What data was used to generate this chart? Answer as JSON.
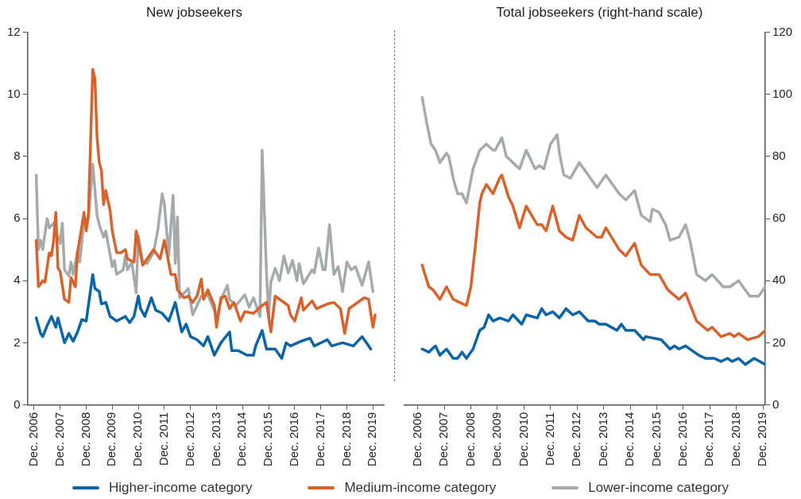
{
  "chart_data": [
    {
      "type": "line",
      "title": "New jobseekers",
      "legend": "bottom",
      "xlim": [
        "2006-09",
        "2020-05"
      ],
      "xticks": [
        {
          "value": "2006-12",
          "label": "Dec. 2006"
        },
        {
          "value": "2007-12",
          "label": "Dec. 2007"
        },
        {
          "value": "2008-12",
          "label": "Dec. 2008"
        },
        {
          "value": "2009-12",
          "label": "Dec. 2009"
        },
        {
          "value": "2010-12",
          "label": "Dec. 2010"
        },
        {
          "value": "2011-12",
          "label": "Dec. 2011"
        },
        {
          "value": "2012-12",
          "label": "Dec. 2012"
        },
        {
          "value": "2013-12",
          "label": "Dec. 2013"
        },
        {
          "value": "2014-12",
          "label": "Dec. 2014"
        },
        {
          "value": "2015-12",
          "label": "Dec. 2015"
        },
        {
          "value": "2016-12",
          "label": "Dec. 2016"
        },
        {
          "value": "2017-12",
          "label": "Dec. 2017"
        },
        {
          "value": "2018-12",
          "label": "Dec. 2018"
        },
        {
          "value": "2019-12",
          "label": "Dec. 2019"
        }
      ],
      "ylim": [
        0,
        12
      ],
      "yticks": [
        0,
        2,
        4,
        6,
        8,
        10,
        12
      ],
      "series": [
        {
          "name": "Higher-income category",
          "color": "#0a64a8",
          "x": [
            "2007-01",
            "2007-03",
            "2007-04",
            "2007-06",
            "2007-08",
            "2007-10",
            "2007-11",
            "2008-02",
            "2008-04",
            "2008-06",
            "2008-08",
            "2008-10",
            "2008-12",
            "2009-03",
            "2009-04",
            "2009-06",
            "2009-07",
            "2009-09",
            "2009-11",
            "2010-02",
            "2010-06",
            "2010-08",
            "2010-10",
            "2010-12",
            "2011-01",
            "2011-03",
            "2011-06",
            "2011-08",
            "2011-11",
            "2012-02",
            "2012-05",
            "2012-07",
            "2012-08",
            "2012-10",
            "2012-12",
            "2013-03",
            "2013-06",
            "2013-08",
            "2013-11",
            "2014-02",
            "2014-06",
            "2014-07",
            "2014-10",
            "2015-02",
            "2015-05",
            "2015-06",
            "2015-09",
            "2015-11",
            "2016-03",
            "2016-06",
            "2016-08",
            "2016-10",
            "2017-03",
            "2017-07",
            "2017-09",
            "2018-03",
            "2018-05",
            "2018-10",
            "2019-03",
            "2019-07",
            "2019-11"
          ],
          "values": [
            2.8,
            2.3,
            2.2,
            2.55,
            2.85,
            2.5,
            2.8,
            2.0,
            2.3,
            2.05,
            2.35,
            2.75,
            2.7,
            4.2,
            3.75,
            3.65,
            3.25,
            3.3,
            2.85,
            2.7,
            2.85,
            2.65,
            2.85,
            3.5,
            3.1,
            2.85,
            3.45,
            3.05,
            2.95,
            2.7,
            3.3,
            2.65,
            2.35,
            2.6,
            2.2,
            2.1,
            1.9,
            2.2,
            1.6,
            2.0,
            2.35,
            1.75,
            1.75,
            1.6,
            1.6,
            1.9,
            2.4,
            1.8,
            1.8,
            1.5,
            2.0,
            1.9,
            2.05,
            2.15,
            1.9,
            2.1,
            1.9,
            2.0,
            1.9,
            2.2,
            1.8
          ]
        },
        {
          "name": "Medium-income category",
          "color": "#d9622b",
          "x": [
            "2007-01",
            "2007-02",
            "2007-04",
            "2007-05",
            "2007-07",
            "2007-08",
            "2007-09",
            "2007-10",
            "2007-11",
            "2007-12",
            "2008-02",
            "2008-04",
            "2008-05",
            "2008-07",
            "2008-08",
            "2008-11",
            "2008-12",
            "2009-01",
            "2009-03",
            "2009-04",
            "2009-05",
            "2009-06",
            "2009-07",
            "2009-08",
            "2009-09",
            "2009-11",
            "2009-12",
            "2010-02",
            "2010-04",
            "2010-06",
            "2010-07",
            "2010-10",
            "2010-11",
            "2011-02",
            "2011-05",
            "2011-07",
            "2011-10",
            "2011-12",
            "2012-03",
            "2012-05",
            "2012-06",
            "2012-09",
            "2012-11",
            "2013-01",
            "2013-03",
            "2013-05",
            "2013-06",
            "2013-08",
            "2013-11",
            "2013-12",
            "2014-02",
            "2014-04",
            "2014-06",
            "2014-08",
            "2014-11",
            "2015-01",
            "2015-05",
            "2015-09",
            "2015-11",
            "2016-01",
            "2016-03",
            "2016-09",
            "2016-10",
            "2016-12",
            "2017-03",
            "2017-04",
            "2017-08",
            "2017-10",
            "2018-03",
            "2018-06",
            "2018-09",
            "2018-11",
            "2019-01",
            "2019-04",
            "2019-08",
            "2019-10",
            "2019-12",
            "2020-01"
          ],
          "values": [
            5.3,
            3.8,
            4.0,
            3.95,
            4.9,
            4.8,
            5.3,
            6.2,
            4.4,
            4.3,
            3.4,
            3.3,
            4.1,
            3.8,
            4.9,
            6.2,
            5.6,
            6.1,
            10.8,
            10.5,
            8.6,
            7.8,
            7.55,
            6.45,
            6.9,
            6.25,
            5.6,
            4.9,
            4.9,
            5.0,
            4.7,
            4.6,
            5.6,
            4.5,
            4.8,
            5.0,
            4.7,
            5.3,
            4.2,
            4.2,
            3.7,
            3.45,
            3.5,
            3.3,
            3.5,
            4.05,
            3.4,
            3.7,
            3.2,
            2.5,
            3.45,
            3.5,
            3.1,
            3.3,
            2.7,
            3.0,
            2.95,
            3.2,
            3.3,
            2.35,
            3.5,
            3.2,
            2.9,
            2.7,
            3.45,
            3.05,
            3.35,
            3.1,
            3.25,
            3.3,
            3.1,
            2.3,
            3.1,
            3.25,
            3.45,
            3.4,
            2.5,
            2.9
          ]
        },
        {
          "name": "Lower-income category",
          "color": "#a5aaad",
          "x": [
            "2007-01",
            "2007-02",
            "2007-03",
            "2007-04",
            "2007-06",
            "2007-07",
            "2007-09",
            "2007-11",
            "2007-12",
            "2008-01",
            "2008-02",
            "2008-04",
            "2008-05",
            "2008-06",
            "2008-08",
            "2008-09",
            "2008-11",
            "2009-01",
            "2009-03",
            "2009-05",
            "2009-06",
            "2009-08",
            "2009-09",
            "2009-12",
            "2010-01",
            "2010-02",
            "2010-05",
            "2010-06",
            "2010-07",
            "2010-09",
            "2010-11",
            "2010-12",
            "2011-02",
            "2011-04",
            "2011-07",
            "2011-09",
            "2011-11",
            "2011-12",
            "2012-02",
            "2012-04",
            "2012-05",
            "2012-06",
            "2012-07",
            "2012-09",
            "2012-11",
            "2013-01",
            "2013-03",
            "2013-05",
            "2013-08",
            "2013-12",
            "2014-03",
            "2014-05",
            "2014-06",
            "2014-09",
            "2015-01",
            "2015-03",
            "2015-05",
            "2015-08",
            "2015-09",
            "2015-11",
            "2015-12",
            "2016-01",
            "2016-03",
            "2016-05",
            "2016-07",
            "2016-09",
            "2016-11",
            "2017-01",
            "2017-02",
            "2017-04",
            "2017-08",
            "2017-09",
            "2017-11",
            "2018-01",
            "2018-02",
            "2018-04",
            "2018-06",
            "2018-08",
            "2018-10",
            "2018-12",
            "2019-02",
            "2019-04",
            "2019-07",
            "2019-10",
            "2019-12"
          ],
          "values": [
            7.4,
            5.0,
            5.3,
            5.0,
            6.0,
            5.7,
            5.85,
            5.4,
            5.2,
            5.85,
            4.35,
            4.15,
            4.6,
            4.2,
            4.95,
            4.6,
            5.9,
            6.0,
            7.75,
            6.1,
            5.8,
            5.4,
            5.6,
            4.45,
            4.65,
            4.2,
            4.35,
            4.8,
            4.35,
            4.6,
            3.6,
            5.45,
            4.6,
            4.55,
            4.9,
            5.65,
            6.8,
            6.45,
            4.8,
            6.75,
            4.55,
            6.05,
            3.45,
            3.6,
            3.75,
            2.9,
            3.2,
            3.5,
            3.55,
            2.85,
            3.55,
            3.85,
            3.4,
            3.2,
            3.55,
            3.15,
            3.45,
            2.85,
            8.2,
            4.25,
            2.85,
            3.95,
            4.4,
            4.0,
            4.8,
            4.25,
            4.65,
            4.0,
            4.55,
            3.9,
            4.35,
            4.25,
            5.05,
            4.35,
            4.35,
            5.8,
            4.2,
            4.45,
            3.65,
            4.6,
            4.35,
            4.45,
            3.85,
            4.6,
            3.65
          ]
        }
      ]
    },
    {
      "type": "line",
      "title": "Total jobseekers (right-hand scale)",
      "xlim": [
        "2006-06",
        "2020-01"
      ],
      "xticks": [
        {
          "value": "2006-12",
          "label": "Dec. 2006"
        },
        {
          "value": "2007-12",
          "label": "Dec. 2007"
        },
        {
          "value": "2008-12",
          "label": "Dec. 2008"
        },
        {
          "value": "2009-12",
          "label": "Dec. 2009"
        },
        {
          "value": "2010-12",
          "label": "Dec. 2010"
        },
        {
          "value": "2011-12",
          "label": "Dec. 2011"
        },
        {
          "value": "2012-12",
          "label": "Dec. 2012"
        },
        {
          "value": "2013-12",
          "label": "Dec. 2013"
        },
        {
          "value": "2014-12",
          "label": "Dec. 2014"
        },
        {
          "value": "2015-12",
          "label": "Dec. 2015"
        },
        {
          "value": "2016-12",
          "label": "Dec. 2016"
        },
        {
          "value": "2017-12",
          "label": "Dec. 2017"
        },
        {
          "value": "2018-12",
          "label": "Dec. 2018"
        },
        {
          "value": "2019-12",
          "label": "Dec. 2019"
        }
      ],
      "y2lim": [
        0,
        120
      ],
      "y2ticks": [
        0,
        20,
        40,
        60,
        80,
        100,
        120
      ],
      "series": [
        {
          "color": "#0a64a8",
          "axis": "y2",
          "x": [
            "2007-02",
            "2007-05",
            "2007-08",
            "2007-10",
            "2008-01",
            "2008-04",
            "2008-06",
            "2008-08",
            "2008-10",
            "2009-01",
            "2009-04",
            "2009-06",
            "2009-08",
            "2009-10",
            "2010-01",
            "2010-05",
            "2010-07",
            "2010-11",
            "2011-01",
            "2011-06",
            "2011-08",
            "2011-10",
            "2012-01",
            "2012-04",
            "2012-07",
            "2012-10",
            "2013-01",
            "2013-05",
            "2013-08",
            "2013-10",
            "2014-01",
            "2014-06",
            "2014-08",
            "2014-10",
            "2015-02",
            "2015-06",
            "2015-07",
            "2016-02",
            "2016-06",
            "2016-08",
            "2016-10",
            "2017-01",
            "2017-07",
            "2017-10",
            "2018-02",
            "2018-05",
            "2018-08",
            "2018-10",
            "2019-01",
            "2019-04",
            "2019-08",
            "2020-01"
          ],
          "values": [
            18,
            17,
            19,
            16,
            18,
            15,
            15,
            17,
            15,
            18,
            24,
            25,
            29,
            27,
            28,
            27,
            29,
            26,
            29,
            28,
            31,
            29,
            30,
            28,
            31,
            29,
            30,
            27,
            27,
            26,
            26,
            24,
            26,
            24,
            24,
            21,
            22,
            21,
            18,
            19,
            18,
            19,
            16,
            15,
            15,
            14,
            15,
            14,
            15,
            13,
            15,
            13
          ]
        },
        {
          "color": "#d9622b",
          "axis": "y2",
          "x": [
            "2007-02",
            "2007-05",
            "2007-07",
            "2007-10",
            "2008-01",
            "2008-04",
            "2008-07",
            "2008-10",
            "2008-12",
            "2009-02",
            "2009-04",
            "2009-05",
            "2009-07",
            "2009-10",
            "2010-01",
            "2010-02",
            "2010-05",
            "2010-07",
            "2010-10",
            "2011-01",
            "2011-06",
            "2011-08",
            "2011-10",
            "2012-01",
            "2012-04",
            "2012-07",
            "2012-10",
            "2013-01",
            "2013-04",
            "2013-09",
            "2013-11",
            "2014-01",
            "2014-07",
            "2014-10",
            "2015-02",
            "2015-05",
            "2015-09",
            "2016-01",
            "2016-05",
            "2016-10",
            "2017-01",
            "2017-06",
            "2017-11",
            "2018-01",
            "2018-05",
            "2018-09",
            "2018-11",
            "2019-01",
            "2019-05",
            "2019-10",
            "2020-01"
          ],
          "values": [
            45,
            38,
            37,
            34,
            38,
            34,
            33,
            32,
            38,
            51,
            65,
            68,
            71,
            68,
            73,
            74,
            67,
            64,
            57,
            64,
            58,
            58,
            56,
            64,
            56,
            54,
            53,
            61,
            57,
            54,
            54,
            57,
            50,
            48,
            52,
            45,
            42,
            42,
            37,
            34,
            36,
            27,
            24,
            25,
            22,
            23,
            22,
            23,
            21,
            22,
            24
          ]
        },
        {
          "color": "#a5aaad",
          "axis": "y2",
          "x": [
            "2007-02",
            "2007-04",
            "2007-06",
            "2007-08",
            "2007-10",
            "2008-01",
            "2008-02",
            "2008-04",
            "2008-06",
            "2008-08",
            "2008-10",
            "2009-01",
            "2009-04",
            "2009-07",
            "2009-10",
            "2009-11",
            "2010-02",
            "2010-04",
            "2010-07",
            "2010-10",
            "2011-01",
            "2011-05",
            "2011-07",
            "2011-09",
            "2011-12",
            "2012-03",
            "2012-04",
            "2012-06",
            "2012-09",
            "2013-01",
            "2013-05",
            "2013-09",
            "2014-01",
            "2014-07",
            "2014-10",
            "2015-02",
            "2015-05",
            "2015-09",
            "2015-10",
            "2016-01",
            "2016-04",
            "2016-06",
            "2016-10",
            "2017-01",
            "2017-03",
            "2017-06",
            "2017-10",
            "2018-01",
            "2018-06",
            "2018-09",
            "2019-01",
            "2019-06",
            "2019-10",
            "2020-01"
          ],
          "values": [
            99,
            91,
            84,
            82,
            78,
            81,
            80,
            73,
            68,
            68,
            65,
            76,
            82,
            84,
            82,
            82,
            86,
            80,
            78,
            76,
            82,
            76,
            77,
            76,
            84,
            87,
            81,
            74,
            73,
            78,
            74,
            70,
            74,
            68,
            66,
            69,
            61,
            59,
            63,
            62,
            58,
            53,
            54,
            58,
            53,
            42,
            40,
            42,
            38,
            38,
            40,
            35,
            35,
            38
          ]
        }
      ]
    }
  ]
}
